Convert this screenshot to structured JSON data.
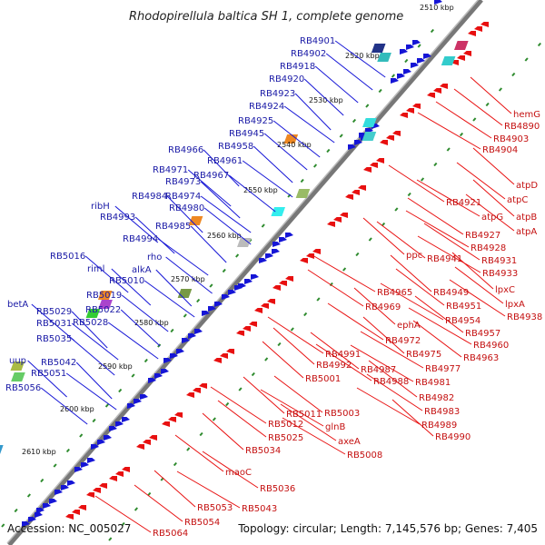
{
  "title": "Rhodopirellula baltica SH 1, complete genome",
  "footer": {
    "accession": "Accession: NC_005027",
    "summary": "Topology: circular; Length: 7,145,576 bp; Genes: 7,405"
  },
  "kbp_marks": [
    "2510 kbp",
    "2520 kbp",
    "2530 kbp",
    "2540 kbp",
    "2550 kbp",
    "2560 kbp",
    "2570 kbp",
    "2580 kbp",
    "2590 kbp",
    "2600 kbp",
    "2610 kbp"
  ],
  "colors": {
    "forward": "#1515d6",
    "reverse": "#e81010",
    "backbone": "#777777",
    "ticks": "#2e8b2e"
  },
  "labels_forward": [
    "RB4901",
    "RB4902",
    "RB4918",
    "RB4920",
    "RB4923",
    "RB4924",
    "RB4925",
    "RB4945",
    "RB4958",
    "RB4966",
    "RB4961",
    "RB4967",
    "RB4971",
    "RB4973",
    "RB4984",
    "RB4974",
    "RB4980",
    "ribH",
    "RB4993",
    "RB4985",
    "RB4994",
    "rho",
    "RB5016",
    "riml",
    "alkA",
    "RB5010",
    "RB5019",
    "betA",
    "RB5022",
    "RB5029",
    "RB5028",
    "RB5031",
    "RB5035",
    "uup",
    "RB5042",
    "RB5051",
    "RB5056"
  ],
  "labels_reverse": [
    "hemG",
    "RB4890",
    "RB4903",
    "RB4904",
    "atpD",
    "atpC",
    "RB4921",
    "atpG",
    "atpB",
    "atpA",
    "RB4927",
    "RB4928",
    "ppc",
    "RB4941",
    "RB4931",
    "RB4933",
    "lpxC",
    "lpxA",
    "RB4938",
    "RB4965",
    "RB4949",
    "RB4951",
    "RB4969",
    "RB4954",
    "ephA",
    "RB4957",
    "RB4972",
    "RB4960",
    "RB4975",
    "RB4963",
    "RB4991",
    "RB4977",
    "RB4992",
    "RB4987",
    "RB4988",
    "RB4981",
    "RB5001",
    "RB4982",
    "RB4983",
    "RB4989",
    "RB5011",
    "RB5003",
    "RB5012",
    "glnB",
    "RB4990",
    "RB5025",
    "axeA",
    "RB5008",
    "RB5034",
    "maoC",
    "RB5036",
    "RB5043",
    "RB5053",
    "RB5054",
    "RB5064"
  ]
}
